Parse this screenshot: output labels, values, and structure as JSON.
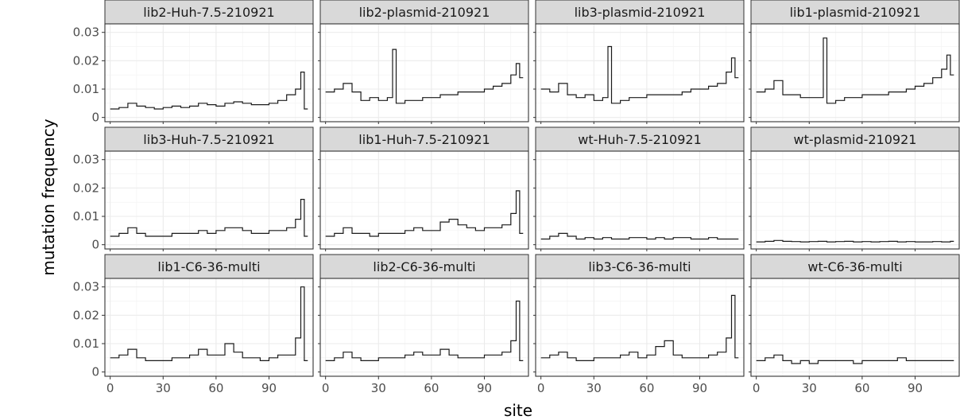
{
  "chart_data": {
    "type": "line",
    "style": "step",
    "xlabel": "site",
    "ylabel": "mutation frequency",
    "xlim": [
      -3,
      115
    ],
    "ylim": [
      -0.0015,
      0.033
    ],
    "x_ticks": [
      0,
      30,
      60,
      90
    ],
    "y_ticks": [
      0,
      0.01,
      0.02,
      0.03
    ],
    "x_tick_labels": [
      "0",
      "30",
      "60",
      "90"
    ],
    "y_tick_labels": [
      "0",
      "0.01",
      "0.02",
      "0.03"
    ],
    "grid": true,
    "panels": [
      {
        "title": "lib2-Huh-7.5-210921",
        "x": [
          0,
          5,
          10,
          15,
          20,
          25,
          30,
          35,
          40,
          45,
          50,
          55,
          60,
          65,
          70,
          75,
          80,
          85,
          90,
          95,
          100,
          105,
          108,
          110
        ],
        "values": [
          0.003,
          0.0035,
          0.005,
          0.004,
          0.0035,
          0.003,
          0.0035,
          0.004,
          0.0035,
          0.004,
          0.005,
          0.0045,
          0.004,
          0.005,
          0.0055,
          0.005,
          0.0045,
          0.0045,
          0.005,
          0.006,
          0.008,
          0.01,
          0.016,
          0.003
        ]
      },
      {
        "title": "lib2-plasmid-210921",
        "x": [
          0,
          5,
          10,
          15,
          20,
          25,
          30,
          35,
          38,
          40,
          45,
          50,
          55,
          60,
          65,
          70,
          75,
          80,
          85,
          90,
          95,
          100,
          105,
          108,
          110
        ],
        "values": [
          0.009,
          0.01,
          0.012,
          0.009,
          0.006,
          0.007,
          0.006,
          0.007,
          0.024,
          0.005,
          0.006,
          0.006,
          0.007,
          0.007,
          0.008,
          0.008,
          0.009,
          0.009,
          0.009,
          0.01,
          0.011,
          0.012,
          0.015,
          0.019,
          0.014
        ]
      },
      {
        "title": "lib3-plasmid-210921",
        "x": [
          0,
          5,
          10,
          15,
          20,
          25,
          30,
          35,
          38,
          40,
          45,
          50,
          55,
          60,
          65,
          70,
          75,
          80,
          85,
          90,
          95,
          100,
          105,
          108,
          110
        ],
        "values": [
          0.01,
          0.009,
          0.012,
          0.008,
          0.007,
          0.008,
          0.006,
          0.007,
          0.025,
          0.005,
          0.006,
          0.007,
          0.007,
          0.008,
          0.008,
          0.008,
          0.008,
          0.009,
          0.01,
          0.01,
          0.011,
          0.012,
          0.016,
          0.021,
          0.014
        ]
      },
      {
        "title": "lib1-plasmid-210921",
        "x": [
          0,
          5,
          10,
          15,
          20,
          25,
          30,
          35,
          38,
          40,
          45,
          50,
          55,
          60,
          65,
          70,
          75,
          80,
          85,
          90,
          95,
          100,
          105,
          108,
          110
        ],
        "values": [
          0.009,
          0.01,
          0.013,
          0.008,
          0.008,
          0.007,
          0.007,
          0.007,
          0.028,
          0.005,
          0.006,
          0.007,
          0.007,
          0.008,
          0.008,
          0.008,
          0.009,
          0.009,
          0.01,
          0.011,
          0.012,
          0.014,
          0.017,
          0.022,
          0.015
        ]
      },
      {
        "title": "lib3-Huh-7.5-210921",
        "x": [
          0,
          5,
          10,
          15,
          20,
          25,
          30,
          35,
          40,
          45,
          50,
          55,
          60,
          65,
          70,
          75,
          80,
          85,
          90,
          95,
          100,
          105,
          108,
          110
        ],
        "values": [
          0.003,
          0.004,
          0.006,
          0.004,
          0.003,
          0.003,
          0.003,
          0.004,
          0.004,
          0.004,
          0.005,
          0.004,
          0.005,
          0.006,
          0.006,
          0.005,
          0.004,
          0.004,
          0.005,
          0.005,
          0.006,
          0.009,
          0.016,
          0.003
        ]
      },
      {
        "title": "lib1-Huh-7.5-210921",
        "x": [
          0,
          5,
          10,
          15,
          20,
          25,
          30,
          35,
          40,
          45,
          50,
          55,
          60,
          65,
          70,
          75,
          80,
          85,
          90,
          95,
          100,
          105,
          108,
          110
        ],
        "values": [
          0.003,
          0.004,
          0.006,
          0.004,
          0.004,
          0.003,
          0.004,
          0.004,
          0.004,
          0.005,
          0.006,
          0.005,
          0.005,
          0.008,
          0.009,
          0.007,
          0.006,
          0.005,
          0.006,
          0.006,
          0.007,
          0.011,
          0.019,
          0.004
        ]
      },
      {
        "title": "wt-Huh-7.5-210921",
        "x": [
          0,
          5,
          10,
          15,
          20,
          25,
          30,
          35,
          40,
          45,
          50,
          55,
          60,
          65,
          70,
          75,
          80,
          85,
          90,
          95,
          100,
          105,
          110
        ],
        "values": [
          0.002,
          0.003,
          0.004,
          0.003,
          0.002,
          0.0025,
          0.002,
          0.0025,
          0.002,
          0.002,
          0.0025,
          0.0025,
          0.002,
          0.0025,
          0.002,
          0.0025,
          0.0025,
          0.002,
          0.002,
          0.0025,
          0.002,
          0.002,
          0.002
        ]
      },
      {
        "title": "wt-plasmid-210921",
        "x": [
          0,
          5,
          10,
          15,
          20,
          25,
          30,
          35,
          40,
          45,
          50,
          55,
          60,
          65,
          70,
          75,
          80,
          85,
          90,
          95,
          100,
          105,
          110
        ],
        "values": [
          0.001,
          0.0012,
          0.0015,
          0.0012,
          0.0011,
          0.001,
          0.0011,
          0.0012,
          0.001,
          0.0011,
          0.0012,
          0.001,
          0.0011,
          0.001,
          0.0011,
          0.0012,
          0.001,
          0.0011,
          0.001,
          0.001,
          0.0011,
          0.001,
          0.0012
        ]
      },
      {
        "title": "lib1-C6-36-multi",
        "x": [
          0,
          5,
          10,
          15,
          20,
          25,
          30,
          35,
          40,
          45,
          50,
          55,
          60,
          65,
          70,
          75,
          80,
          85,
          90,
          95,
          100,
          105,
          108,
          110
        ],
        "values": [
          0.005,
          0.006,
          0.008,
          0.005,
          0.004,
          0.004,
          0.004,
          0.005,
          0.005,
          0.006,
          0.008,
          0.006,
          0.006,
          0.01,
          0.007,
          0.005,
          0.005,
          0.004,
          0.005,
          0.006,
          0.006,
          0.012,
          0.03,
          0.004
        ]
      },
      {
        "title": "lib2-C6-36-multi",
        "x": [
          0,
          5,
          10,
          15,
          20,
          25,
          30,
          35,
          40,
          45,
          50,
          55,
          60,
          65,
          70,
          75,
          80,
          85,
          90,
          95,
          100,
          105,
          108,
          110
        ],
        "values": [
          0.004,
          0.005,
          0.007,
          0.005,
          0.004,
          0.004,
          0.005,
          0.005,
          0.005,
          0.006,
          0.007,
          0.006,
          0.006,
          0.008,
          0.006,
          0.005,
          0.005,
          0.005,
          0.006,
          0.006,
          0.007,
          0.011,
          0.025,
          0.004
        ]
      },
      {
        "title": "lib3-C6-36-multi",
        "x": [
          0,
          5,
          10,
          15,
          20,
          25,
          30,
          35,
          40,
          45,
          50,
          55,
          60,
          65,
          70,
          75,
          80,
          85,
          90,
          95,
          100,
          105,
          108,
          110
        ],
        "values": [
          0.005,
          0.006,
          0.007,
          0.005,
          0.004,
          0.004,
          0.005,
          0.005,
          0.005,
          0.006,
          0.007,
          0.005,
          0.006,
          0.009,
          0.011,
          0.006,
          0.005,
          0.005,
          0.005,
          0.006,
          0.007,
          0.012,
          0.027,
          0.005
        ]
      },
      {
        "title": "wt-C6-36-multi",
        "x": [
          0,
          5,
          10,
          15,
          20,
          25,
          30,
          35,
          40,
          45,
          50,
          55,
          60,
          65,
          70,
          75,
          80,
          85,
          90,
          95,
          100,
          105,
          110
        ],
        "values": [
          0.004,
          0.005,
          0.006,
          0.004,
          0.003,
          0.004,
          0.003,
          0.004,
          0.004,
          0.004,
          0.004,
          0.003,
          0.004,
          0.004,
          0.004,
          0.004,
          0.005,
          0.004,
          0.004,
          0.004,
          0.004,
          0.004,
          0.004
        ]
      }
    ]
  }
}
